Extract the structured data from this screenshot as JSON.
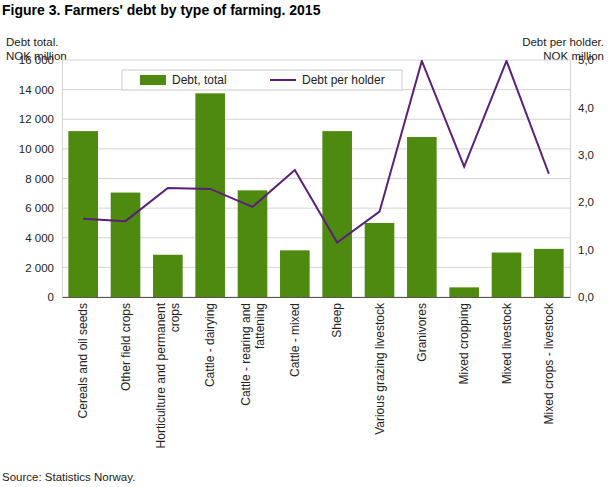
{
  "chart_data": {
    "type": "bar",
    "title": "Figure 3. Farmers' debt by type of farming. 2015",
    "y_label": "Debt total.\nNOK million",
    "y2_label": "Debt per holder.\nNOK million",
    "source": "Source: Statistics Norway.",
    "categories": [
      "Cereals and oil seeds",
      "Other field crops",
      "Horticulture and permanent crops",
      "Cattle - dairying",
      "Cattle - rearing and fattening",
      "Cattle - mixed",
      "Sheep",
      "Various grazing livestock",
      "Granivores",
      "Mixed cropping",
      "Mixed livestock",
      "Mixed crops - livestock"
    ],
    "series": [
      {
        "name": "Debt, total",
        "color": "#4e8a10",
        "values": [
          11200,
          7050,
          2850,
          13750,
          7200,
          3150,
          11200,
          5000,
          10800,
          650,
          3000,
          3250
        ]
      },
      {
        "name": "Debt per holder",
        "color": "#5b1f78",
        "type": "line",
        "axis": "y2",
        "values": [
          1.65,
          1.6,
          2.3,
          2.28,
          1.9,
          2.68,
          1.15,
          1.8,
          4.98,
          2.75,
          4.98,
          2.6
        ]
      }
    ],
    "ylim": [
      0,
      16000
    ],
    "yticks": [
      0,
      {
        "value": 2000,
        "label": "2 000"
      },
      {
        "value": 4000,
        "label": "4 000"
      },
      {
        "value": 6000,
        "label": "6 000"
      },
      {
        "value": 8000,
        "label": "8 000"
      },
      {
        "value": 10000,
        "label": "10 000"
      },
      {
        "value": 12000,
        "label": "12 000"
      },
      {
        "value": 14000,
        "label": "14 000"
      },
      {
        "value": 16000,
        "label": "16 000"
      }
    ],
    "y2lim": [
      0,
      5
    ],
    "y2ticks": [
      {
        "value": 0,
        "label": "0,0"
      },
      {
        "value": 1,
        "label": "1,0"
      },
      {
        "value": 2,
        "label": "2,0"
      },
      {
        "value": 3,
        "label": "3,0"
      },
      {
        "value": 4,
        "label": "4,0"
      },
      {
        "value": 5,
        "label": "5,0"
      }
    ],
    "grid": true,
    "legend": "top"
  }
}
